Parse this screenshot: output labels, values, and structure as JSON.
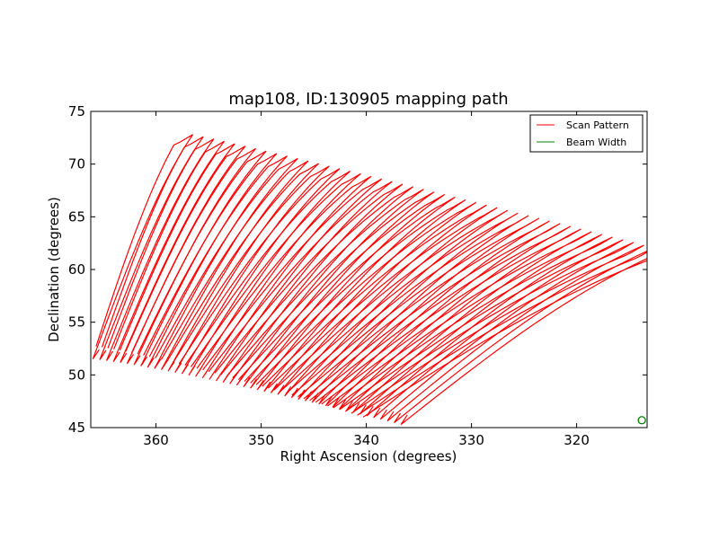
{
  "chart_data": {
    "type": "line",
    "title": "map108, ID:130905 mapping path",
    "xlabel": "Right Ascension (degrees)",
    "ylabel": "Declination (degrees)",
    "xlim": [
      366.2,
      313.3
    ],
    "ylim": [
      45,
      75
    ],
    "x_inverted": true,
    "xticks": [
      360,
      350,
      340,
      330,
      320
    ],
    "yticks": [
      45,
      50,
      55,
      60,
      65,
      70,
      75
    ],
    "grid": false,
    "legend_position": "top-right",
    "series": [
      {
        "name": "Scan Pattern",
        "color": "#ff0000",
        "scan_count": 46,
        "scan_start_points": [
          [
            365.7,
            52.7
          ],
          [
            340.3,
            46.0
          ]
        ],
        "scan_turn_points": [
          [
            358.3,
            71.8
          ],
          [
            313.4,
            60.8
          ]
        ],
        "scan_tail_low": [
          [
            365.7,
            51.5
          ],
          [
            336.4,
            45.3
          ]
        ]
      },
      {
        "name": "Beam Width",
        "color": "#008000",
        "marker": "circle",
        "x": [
          313.8
        ],
        "y": [
          45.7
        ]
      }
    ]
  }
}
